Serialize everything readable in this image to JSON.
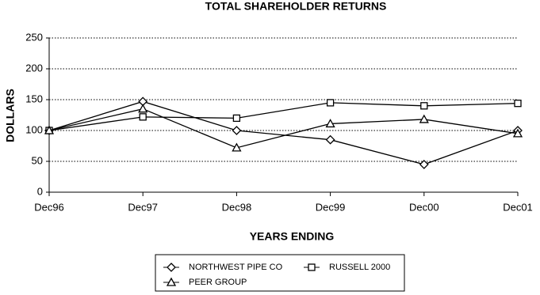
{
  "chart_data": {
    "type": "line",
    "title": "TOTAL SHAREHOLDER RETURNS",
    "x_label": "YEARS ENDING",
    "y_label": "DOLLARS",
    "categories": [
      "Dec96",
      "Dec97",
      "Dec98",
      "Dec99",
      "Dec00",
      "Dec01"
    ],
    "series": [
      {
        "name": "NORTHWEST PIPE CO",
        "color": "#000000",
        "marker": "diamond",
        "values": [
          100,
          147,
          100,
          85,
          45,
          100
        ]
      },
      {
        "name": "RUSSELL 2000",
        "color": "#000000",
        "marker": "square",
        "values": [
          100,
          122,
          120,
          145,
          140,
          144
        ]
      },
      {
        "name": "PEER GROUP",
        "color": "#000000",
        "marker": "triangle",
        "values": [
          100,
          135,
          72,
          111,
          118,
          95
        ]
      }
    ],
    "ylim": [
      0,
      250
    ],
    "yticks": [
      0,
      50,
      100,
      150,
      200,
      250
    ],
    "grid": true,
    "legend": "bottom"
  }
}
